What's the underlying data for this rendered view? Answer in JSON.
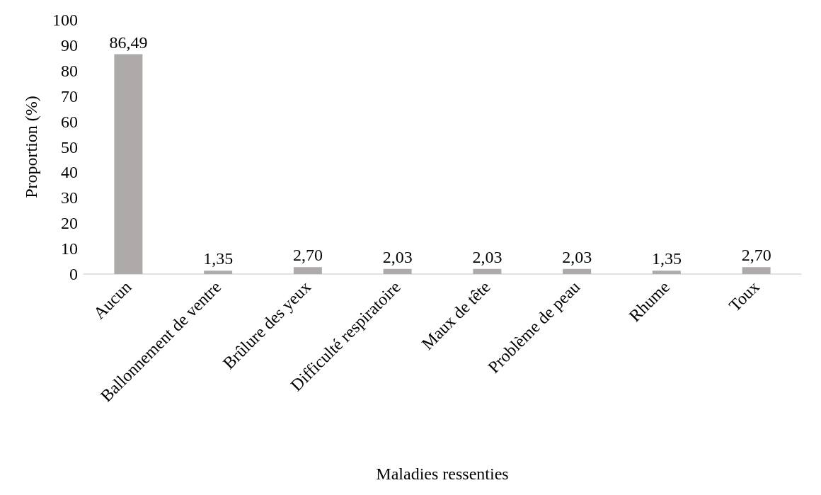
{
  "chart_data": {
    "type": "bar",
    "xlabel": "Maladies ressenties",
    "ylabel": "Proportion (%)",
    "categories": [
      "Aucun",
      "Ballonnement de ventre",
      "Brûlure des yeux",
      "Difficulté respiratoire",
      "Maux de tête",
      "Problème de peau",
      "Rhume",
      "Toux"
    ],
    "values": [
      86.49,
      1.35,
      2.7,
      2.03,
      2.03,
      2.03,
      1.35,
      2.7
    ],
    "value_labels": [
      "86,49",
      "1,35",
      "2,70",
      "2,03",
      "2,03",
      "2,03",
      "1,35",
      "2,70"
    ],
    "color": "#aeaaaa",
    "ylim": [
      0,
      100
    ],
    "yticks": [
      0,
      10,
      20,
      30,
      40,
      50,
      60,
      70,
      80,
      90,
      100
    ],
    "grid": false
  }
}
